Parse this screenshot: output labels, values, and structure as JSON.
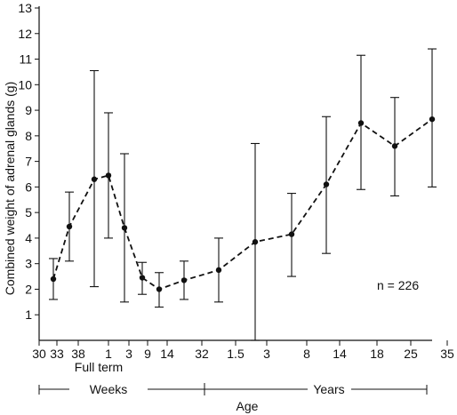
{
  "chart_data": {
    "type": "line",
    "ylabel": "Combined weight of adrenal glands (g)",
    "xlabel": "Age",
    "annotation": "n = 226",
    "ylim": [
      0,
      13
    ],
    "y_ticks": [
      "1",
      "2",
      "3",
      "4",
      "5",
      "6",
      "7",
      "8",
      "9",
      "10",
      "11",
      "12",
      "13"
    ],
    "x_ticks": [
      "30",
      "33",
      "38",
      "1",
      "3",
      "9",
      "14",
      "32",
      "1.5",
      "3",
      "8",
      "14",
      "18",
      "25",
      "35"
    ],
    "x_sublabel": "Full term",
    "x_groups": [
      {
        "label": "Weeks"
      },
      {
        "label": "Years"
      }
    ],
    "line_style": "dashed",
    "grid": false,
    "points": [
      {
        "x": "33 weeks (gestation)",
        "y": 2.4,
        "low": 1.6,
        "high": 3.2
      },
      {
        "x": "37 weeks (gestation)",
        "y": 4.45,
        "low": 3.1,
        "high": 5.8
      },
      {
        "x": "Full term",
        "y": 6.3,
        "low": 2.1,
        "high": 10.55
      },
      {
        "x": "1 week",
        "y": 6.45,
        "low": 4.0,
        "high": 8.9
      },
      {
        "x": "2–3 weeks",
        "y": 4.4,
        "low": 1.5,
        "high": 7.3
      },
      {
        "x": "9 weeks",
        "y": 2.45,
        "low": 1.8,
        "high": 3.05
      },
      {
        "x": "14 weeks",
        "y": 2.0,
        "low": 1.3,
        "high": 2.65
      },
      {
        "x": "26 weeks",
        "y": 2.35,
        "low": 1.6,
        "high": 3.1
      },
      {
        "x": "1 year",
        "y": 2.75,
        "low": 1.5,
        "high": 4.0
      },
      {
        "x": "2 years",
        "y": 3.85,
        "low": 0.0,
        "high": 7.7
      },
      {
        "x": "5 years",
        "y": 4.15,
        "low": 2.5,
        "high": 5.75
      },
      {
        "x": "10 years",
        "y": 6.1,
        "low": 3.4,
        "high": 8.75
      },
      {
        "x": "16 years",
        "y": 8.5,
        "low": 5.9,
        "high": 11.15
      },
      {
        "x": "21 years",
        "y": 7.6,
        "low": 5.65,
        "high": 9.5
      },
      {
        "x": "30 years",
        "y": 8.65,
        "low": 6.0,
        "high": 11.4
      }
    ]
  }
}
